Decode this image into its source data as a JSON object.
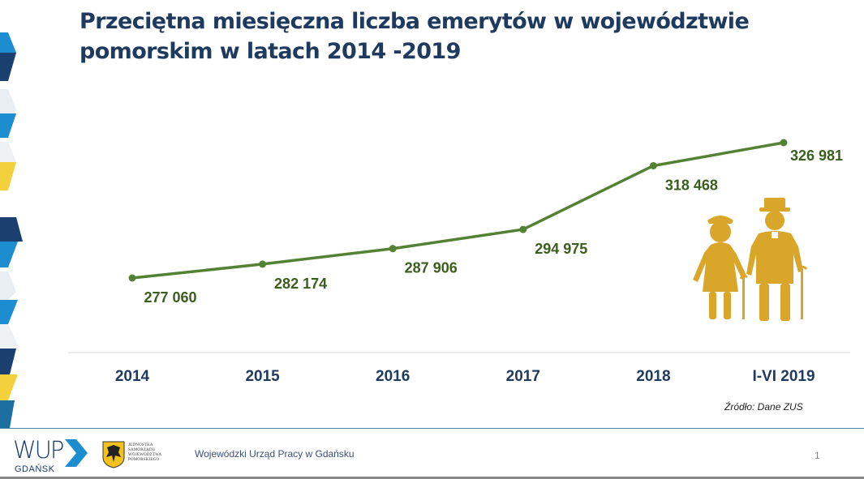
{
  "slide": {
    "title": "Przeciętna miesięczna liczba emerytów w województwie pomorskim w latach 2014 -2019",
    "source": "Źródło:  Dane ZUS",
    "footer_org": "Wojewódzki Urząd Pracy w Gdańsku",
    "page_number": "1",
    "logo": {
      "wup": "WUP",
      "wup_sub": "GDAŃSK",
      "crest_lines": [
        "JEDNOSTKA",
        "SAMORZĄDU",
        "WOJEWÓDZTWA",
        "POMORSKIEGO"
      ]
    }
  },
  "colors": {
    "line": "#548235",
    "label": "#3b5e1e",
    "axis_text": "#1f3a5f",
    "figure": "#d9a62a",
    "title": "#1f3a5f"
  },
  "chart_data": {
    "type": "line",
    "title": "Przeciętna miesięczna liczba emerytów w województwie pomorskim w latach 2014 -2019",
    "categories": [
      "2014",
      "2015",
      "2016",
      "2017",
      "2018",
      "I-VI 2019"
    ],
    "series": [
      {
        "values": [
          277060,
          282174,
          287906,
          294975,
          318468,
          326981
        ],
        "labels": [
          "277 060",
          "282 174",
          "287 906",
          "294 975",
          "318 468",
          "326 981"
        ]
      }
    ],
    "xlabel": "",
    "ylabel": "",
    "grid": false,
    "legend": "none"
  }
}
